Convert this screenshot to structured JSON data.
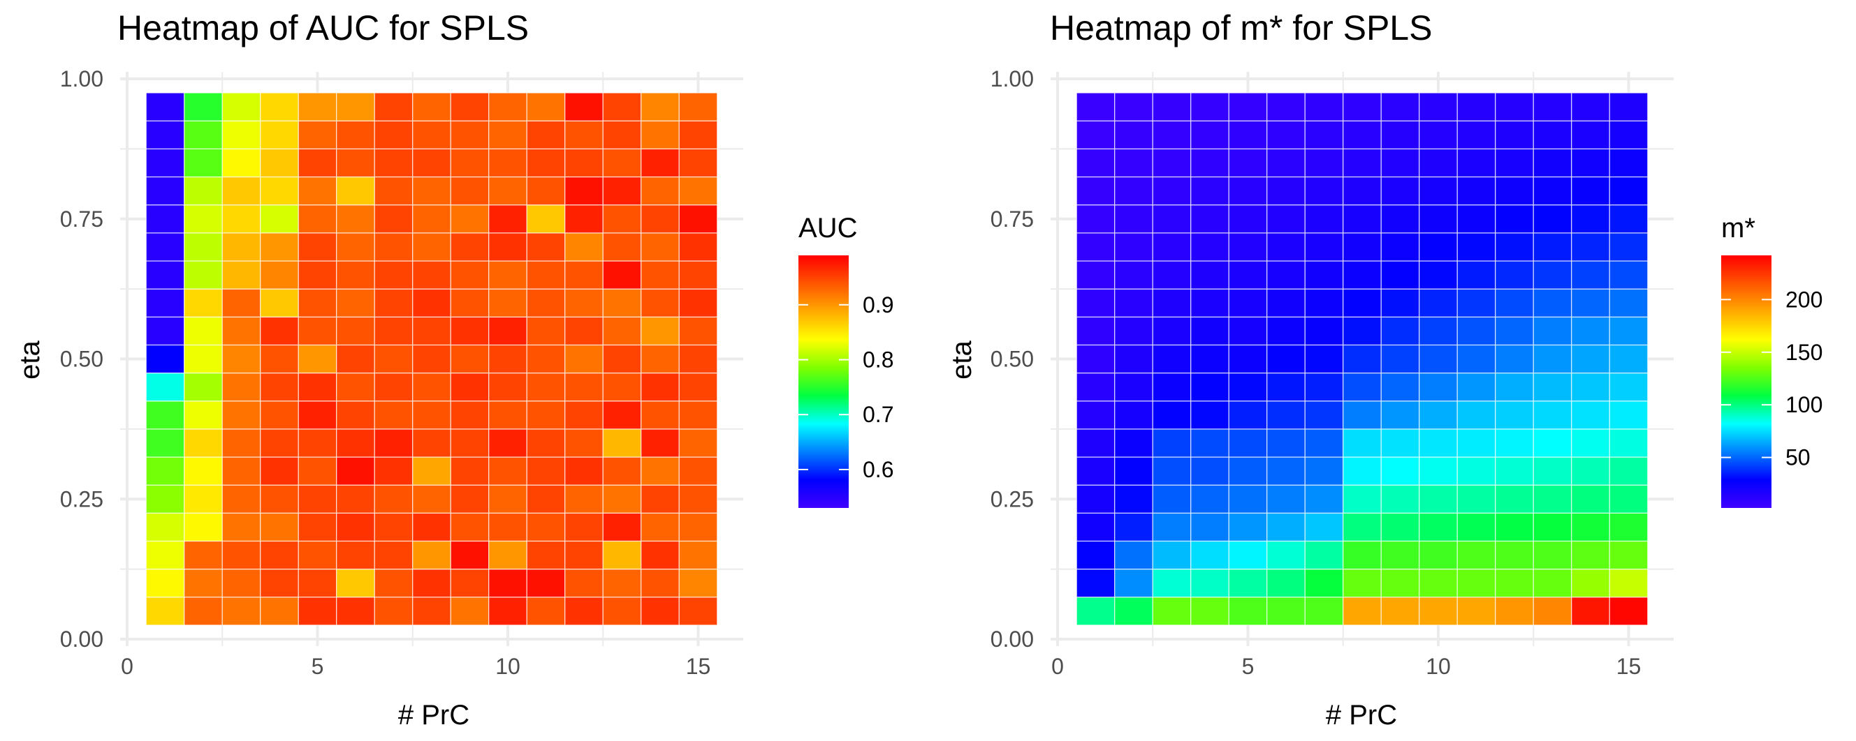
{
  "chart_data": [
    {
      "type": "heatmap",
      "title": "Heatmap of AUC for SPLS",
      "xlabel": "# PrC",
      "ylabel": "eta",
      "x": [
        1,
        2,
        3,
        4,
        5,
        6,
        7,
        8,
        9,
        10,
        11,
        12,
        13,
        14,
        15
      ],
      "y": [
        0.05,
        0.1,
        0.15,
        0.2,
        0.25,
        0.3,
        0.35,
        0.4,
        0.45,
        0.5,
        0.55,
        0.6,
        0.65,
        0.7,
        0.75,
        0.8,
        0.85,
        0.9,
        0.95
      ],
      "xlim": [
        0,
        16
      ],
      "ylim": [
        0,
        1
      ],
      "xticks": [
        "0",
        "5",
        "10",
        "15"
      ],
      "yticks": [
        "0.00",
        "0.25",
        "0.50",
        "0.75",
        "1.00"
      ],
      "values": [
        [
          0.86,
          0.93,
          0.92,
          0.92,
          0.96,
          0.96,
          0.94,
          0.95,
          0.92,
          0.97,
          0.94,
          0.96,
          0.94,
          0.96,
          0.95
        ],
        [
          0.84,
          0.92,
          0.93,
          0.95,
          0.95,
          0.87,
          0.94,
          0.96,
          0.95,
          0.98,
          0.98,
          0.94,
          0.93,
          0.94,
          0.91
        ],
        [
          0.83,
          0.93,
          0.94,
          0.95,
          0.94,
          0.95,
          0.95,
          0.9,
          0.98,
          0.9,
          0.95,
          0.95,
          0.88,
          0.96,
          0.92
        ],
        [
          0.82,
          0.84,
          0.92,
          0.92,
          0.95,
          0.96,
          0.95,
          0.96,
          0.94,
          0.94,
          0.94,
          0.95,
          0.97,
          0.93,
          0.93
        ],
        [
          0.79,
          0.85,
          0.93,
          0.94,
          0.95,
          0.95,
          0.94,
          0.93,
          0.95,
          0.93,
          0.95,
          0.93,
          0.92,
          0.95,
          0.94
        ],
        [
          0.78,
          0.84,
          0.93,
          0.96,
          0.94,
          0.98,
          0.96,
          0.89,
          0.95,
          0.94,
          0.95,
          0.96,
          0.94,
          0.92,
          0.94
        ],
        [
          0.76,
          0.86,
          0.93,
          0.95,
          0.95,
          0.96,
          0.97,
          0.95,
          0.95,
          0.97,
          0.95,
          0.94,
          0.88,
          0.97,
          0.93
        ],
        [
          0.76,
          0.83,
          0.92,
          0.94,
          0.97,
          0.95,
          0.94,
          0.94,
          0.95,
          0.94,
          0.94,
          0.95,
          0.97,
          0.94,
          0.94
        ],
        [
          0.69,
          0.8,
          0.92,
          0.95,
          0.96,
          0.94,
          0.95,
          0.94,
          0.96,
          0.95,
          0.94,
          0.94,
          0.94,
          0.96,
          0.95
        ],
        [
          0.58,
          0.83,
          0.91,
          0.94,
          0.9,
          0.95,
          0.94,
          0.95,
          0.94,
          0.95,
          0.94,
          0.92,
          0.95,
          0.93,
          0.95
        ],
        [
          0.55,
          0.83,
          0.92,
          0.96,
          0.94,
          0.94,
          0.95,
          0.95,
          0.96,
          0.97,
          0.94,
          0.95,
          0.93,
          0.9,
          0.94
        ],
        [
          0.55,
          0.86,
          0.93,
          0.87,
          0.94,
          0.93,
          0.95,
          0.96,
          0.94,
          0.93,
          0.94,
          0.93,
          0.92,
          0.94,
          0.96
        ],
        [
          0.55,
          0.81,
          0.88,
          0.91,
          0.95,
          0.94,
          0.95,
          0.95,
          0.94,
          0.93,
          0.94,
          0.94,
          0.98,
          0.94,
          0.95
        ],
        [
          0.55,
          0.81,
          0.88,
          0.9,
          0.95,
          0.93,
          0.94,
          0.93,
          0.95,
          0.96,
          0.95,
          0.91,
          0.94,
          0.93,
          0.96
        ],
        [
          0.55,
          0.82,
          0.86,
          0.82,
          0.93,
          0.92,
          0.95,
          0.93,
          0.92,
          0.97,
          0.87,
          0.97,
          0.94,
          0.95,
          0.98
        ],
        [
          0.55,
          0.81,
          0.87,
          0.86,
          0.92,
          0.87,
          0.94,
          0.93,
          0.94,
          0.93,
          0.94,
          0.98,
          0.97,
          0.93,
          0.92
        ],
        [
          0.55,
          0.77,
          0.84,
          0.87,
          0.95,
          0.94,
          0.95,
          0.95,
          0.94,
          0.94,
          0.95,
          0.95,
          0.94,
          0.97,
          0.95
        ],
        [
          0.55,
          0.77,
          0.83,
          0.86,
          0.93,
          0.94,
          0.95,
          0.94,
          0.94,
          0.93,
          0.95,
          0.94,
          0.95,
          0.92,
          0.95
        ],
        [
          0.55,
          0.75,
          0.82,
          0.86,
          0.9,
          0.9,
          0.95,
          0.93,
          0.95,
          0.93,
          0.92,
          0.98,
          0.95,
          0.91,
          0.93
        ]
      ],
      "colorbar": {
        "title": "AUC",
        "min": 0.53,
        "max": 0.99,
        "ticks": [
          0.6,
          0.7,
          0.8,
          0.9
        ],
        "tick_labels": [
          "0.6",
          "0.7",
          "0.8",
          "0.9"
        ],
        "colors": [
          "#4000ff",
          "#0000ff",
          "#0080ff",
          "#00ffff",
          "#00ff40",
          "#80ff00",
          "#ffff00",
          "#ffaa00",
          "#ff5500",
          "#ff0000"
        ]
      },
      "grid": true,
      "legend_position": "right"
    },
    {
      "type": "heatmap",
      "title": "Heatmap of m* for SPLS",
      "xlabel": "# PrC",
      "ylabel": "eta",
      "x": [
        1,
        2,
        3,
        4,
        5,
        6,
        7,
        8,
        9,
        10,
        11,
        12,
        13,
        14,
        15
      ],
      "y": [
        0.05,
        0.1,
        0.15,
        0.2,
        0.25,
        0.3,
        0.35,
        0.4,
        0.45,
        0.5,
        0.55,
        0.6,
        0.65,
        0.7,
        0.75,
        0.8,
        0.85,
        0.9,
        0.95
      ],
      "xlim": [
        0,
        16
      ],
      "ylim": [
        0,
        1
      ],
      "xticks": [
        "0",
        "5",
        "10",
        "15"
      ],
      "yticks": [
        "0.00",
        "0.25",
        "0.50",
        "0.75",
        "1.00"
      ],
      "values": [
        [
          98,
          105,
          130,
          130,
          125,
          125,
          125,
          190,
          190,
          190,
          190,
          195,
          200,
          235,
          240
        ],
        [
          30,
          58,
          88,
          90,
          95,
          100,
          110,
          130,
          130,
          130,
          130,
          130,
          130,
          140,
          150
        ],
        [
          28,
          52,
          68,
          75,
          80,
          88,
          95,
          120,
          122,
          122,
          125,
          125,
          125,
          128,
          130
        ],
        [
          22,
          35,
          55,
          55,
          60,
          65,
          70,
          100,
          102,
          104,
          106,
          108,
          110,
          112,
          115
        ],
        [
          20,
          30,
          48,
          50,
          52,
          55,
          58,
          90,
          92,
          94,
          95,
          97,
          98,
          100,
          100
        ],
        [
          18,
          28,
          45,
          45,
          48,
          50,
          52,
          80,
          82,
          84,
          86,
          88,
          90,
          92,
          95
        ],
        [
          16,
          25,
          42,
          44,
          44,
          46,
          48,
          75,
          76,
          77,
          78,
          80,
          82,
          84,
          86
        ],
        [
          14,
          20,
          28,
          30,
          35,
          38,
          40,
          55,
          60,
          65,
          70,
          72,
          74,
          76,
          78
        ],
        [
          12,
          18,
          25,
          28,
          30,
          33,
          35,
          45,
          50,
          55,
          60,
          65,
          68,
          70,
          72
        ],
        [
          10,
          16,
          22,
          24,
          24,
          28,
          30,
          38,
          42,
          46,
          50,
          55,
          60,
          63,
          65
        ],
        [
          9,
          14,
          18,
          21,
          20,
          24,
          26,
          32,
          38,
          42,
          46,
          50,
          55,
          58,
          60
        ],
        [
          9,
          12,
          16,
          18,
          19,
          21,
          24,
          28,
          32,
          36,
          40,
          44,
          48,
          50,
          52
        ],
        [
          8,
          11,
          14,
          16,
          17,
          19,
          21,
          24,
          27,
          30,
          34,
          37,
          40,
          42,
          44
        ],
        [
          8,
          10,
          12,
          14,
          15,
          17,
          19,
          21,
          24,
          27,
          30,
          32,
          34,
          36,
          38
        ],
        [
          7,
          9,
          11,
          12,
          14,
          15,
          17,
          19,
          21,
          23,
          25,
          27,
          29,
          31,
          33
        ],
        [
          6,
          8,
          9,
          11,
          12,
          13,
          15,
          16,
          18,
          20,
          21,
          23,
          25,
          26,
          28
        ],
        [
          6,
          7,
          8,
          9,
          10,
          11,
          12,
          14,
          15,
          16,
          18,
          19,
          21,
          22,
          24
        ],
        [
          5,
          6,
          7,
          8,
          9,
          10,
          11,
          12,
          13,
          14,
          15,
          16,
          17,
          18,
          20
        ],
        [
          5,
          5,
          6,
          7,
          7,
          8,
          9,
          10,
          11,
          12,
          13,
          13,
          14,
          15,
          16
        ]
      ],
      "colorbar": {
        "title": "m*",
        "min": 2,
        "max": 242,
        "ticks": [
          50,
          100,
          150,
          200
        ],
        "tick_labels": [
          "50",
          "100",
          "150",
          "200"
        ],
        "colors": [
          "#4000ff",
          "#0000ff",
          "#0080ff",
          "#00ffff",
          "#00ff40",
          "#80ff00",
          "#ffff00",
          "#ffaa00",
          "#ff5500",
          "#ff0000"
        ]
      },
      "grid": true,
      "legend_position": "right"
    }
  ]
}
